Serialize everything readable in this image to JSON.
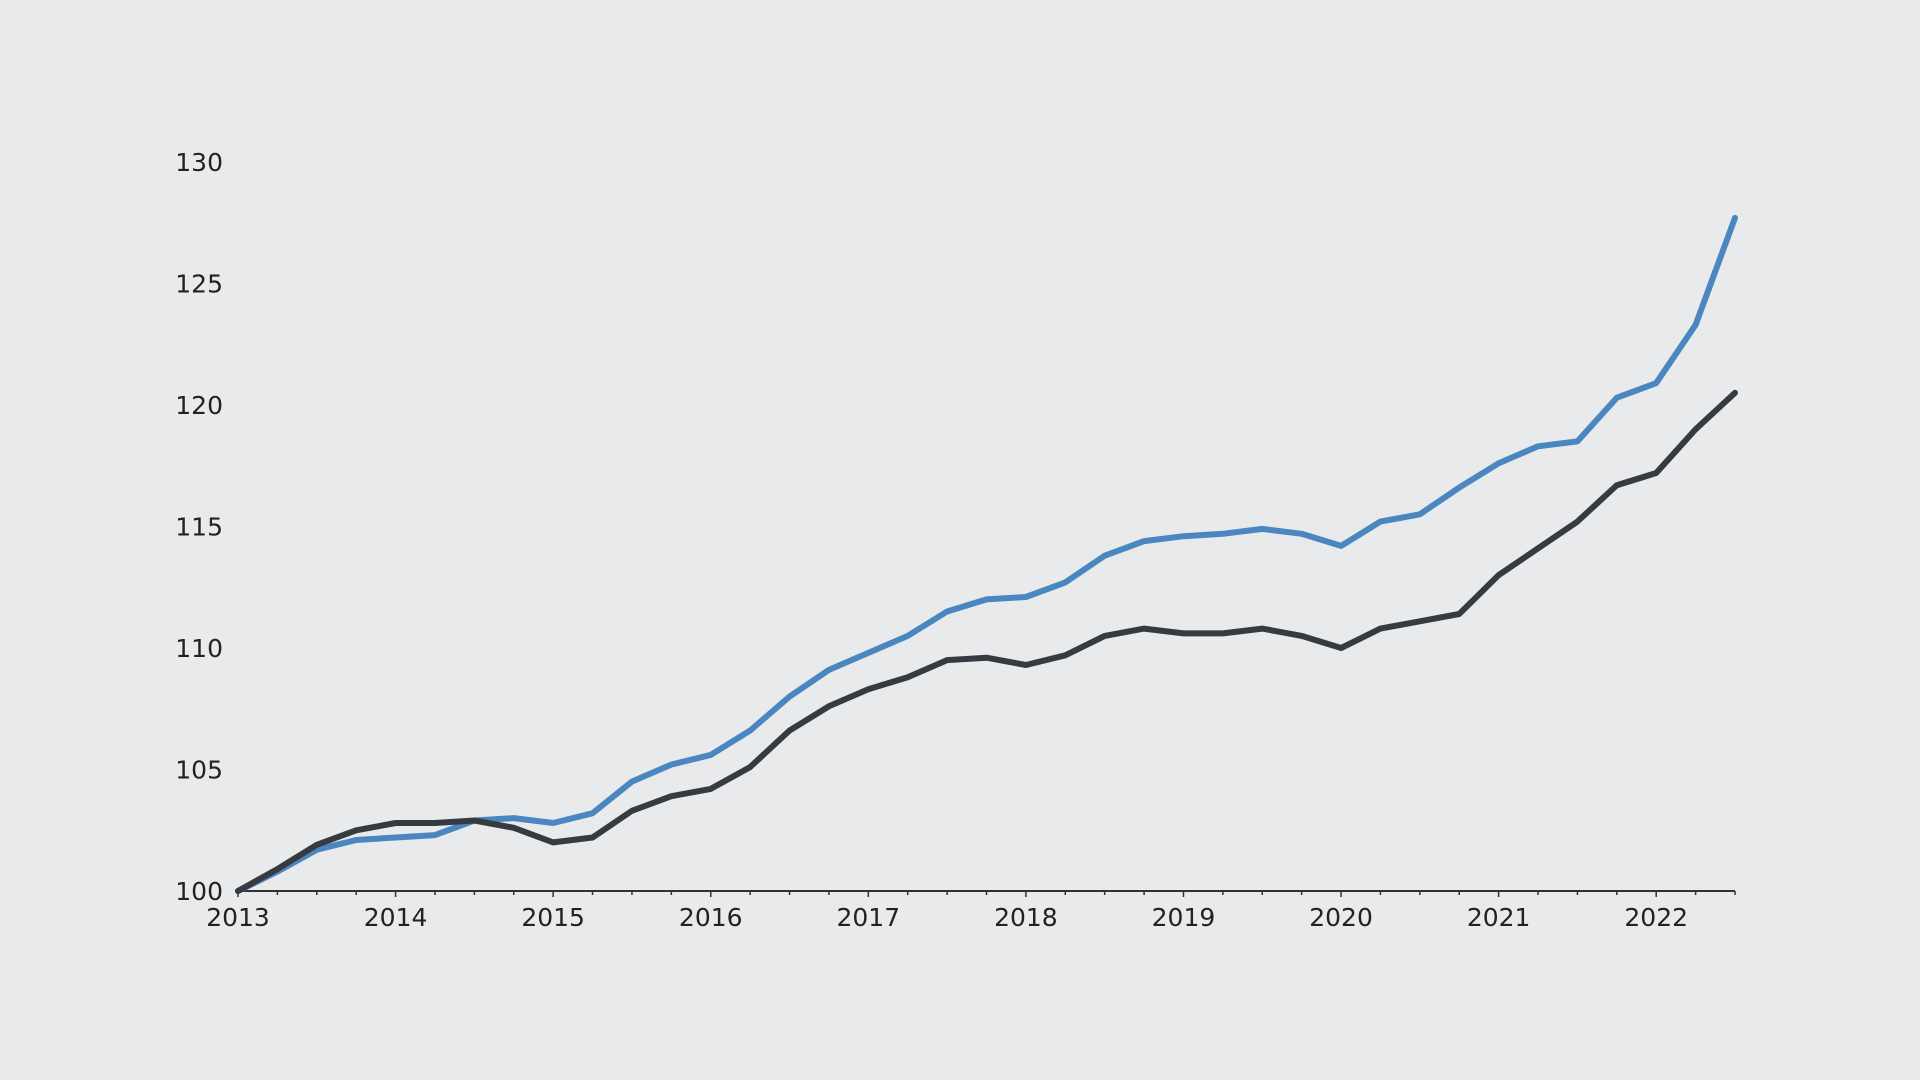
{
  "chart_data": {
    "type": "line",
    "title": "",
    "xlabel": "",
    "ylabel": "",
    "xlim": [
      2013,
      2022.5
    ],
    "ylim": [
      100,
      130
    ],
    "y_ticks": [
      100,
      105,
      110,
      115,
      120,
      125,
      130
    ],
    "x_ticks": [
      2013,
      2014,
      2015,
      2016,
      2017,
      2018,
      2019,
      2020,
      2021,
      2022
    ],
    "y_tick_labels": [
      "100",
      "105",
      "110",
      "115",
      "120",
      "125",
      "130"
    ],
    "x_tick_labels": [
      "2013",
      "2014",
      "2015",
      "2016",
      "2017",
      "2018",
      "2019",
      "2020",
      "2021",
      "2022"
    ],
    "grid": false,
    "x": [
      2013.0,
      2013.25,
      2013.5,
      2013.75,
      2014.0,
      2014.25,
      2014.5,
      2014.75,
      2015.0,
      2015.25,
      2015.5,
      2015.75,
      2016.0,
      2016.25,
      2016.5,
      2016.75,
      2017.0,
      2017.25,
      2017.5,
      2017.75,
      2018.0,
      2018.25,
      2018.5,
      2018.75,
      2019.0,
      2019.25,
      2019.5,
      2019.75,
      2020.0,
      2020.25,
      2020.5,
      2020.75,
      2021.0,
      2021.25,
      2021.5,
      2021.75,
      2022.0,
      2022.25,
      2022.5
    ],
    "series": [
      {
        "color": "#4a86c0",
        "values": [
          100.0,
          100.8,
          101.7,
          102.1,
          102.2,
          102.3,
          102.9,
          103.0,
          102.8,
          103.2,
          104.5,
          105.2,
          105.6,
          106.6,
          108.0,
          109.1,
          109.8,
          110.5,
          111.5,
          112.0,
          112.1,
          112.7,
          113.8,
          114.4,
          114.6,
          114.7,
          114.9,
          114.7,
          114.2,
          115.2,
          115.5,
          116.6,
          117.6,
          118.3,
          118.5,
          120.3,
          120.9,
          123.3,
          127.7
        ]
      },
      {
        "color": "#353b41",
        "values": [
          100.0,
          100.9,
          101.9,
          102.5,
          102.8,
          102.8,
          102.9,
          102.6,
          102.0,
          102.2,
          103.3,
          103.9,
          104.2,
          105.1,
          106.6,
          107.6,
          108.3,
          108.8,
          109.5,
          109.6,
          109.3,
          109.7,
          110.5,
          110.8,
          110.6,
          110.6,
          110.8,
          110.5,
          110.0,
          110.8,
          111.1,
          111.4,
          113.0,
          114.1,
          115.2,
          116.7,
          117.2,
          119.0,
          120.5
        ]
      }
    ]
  }
}
